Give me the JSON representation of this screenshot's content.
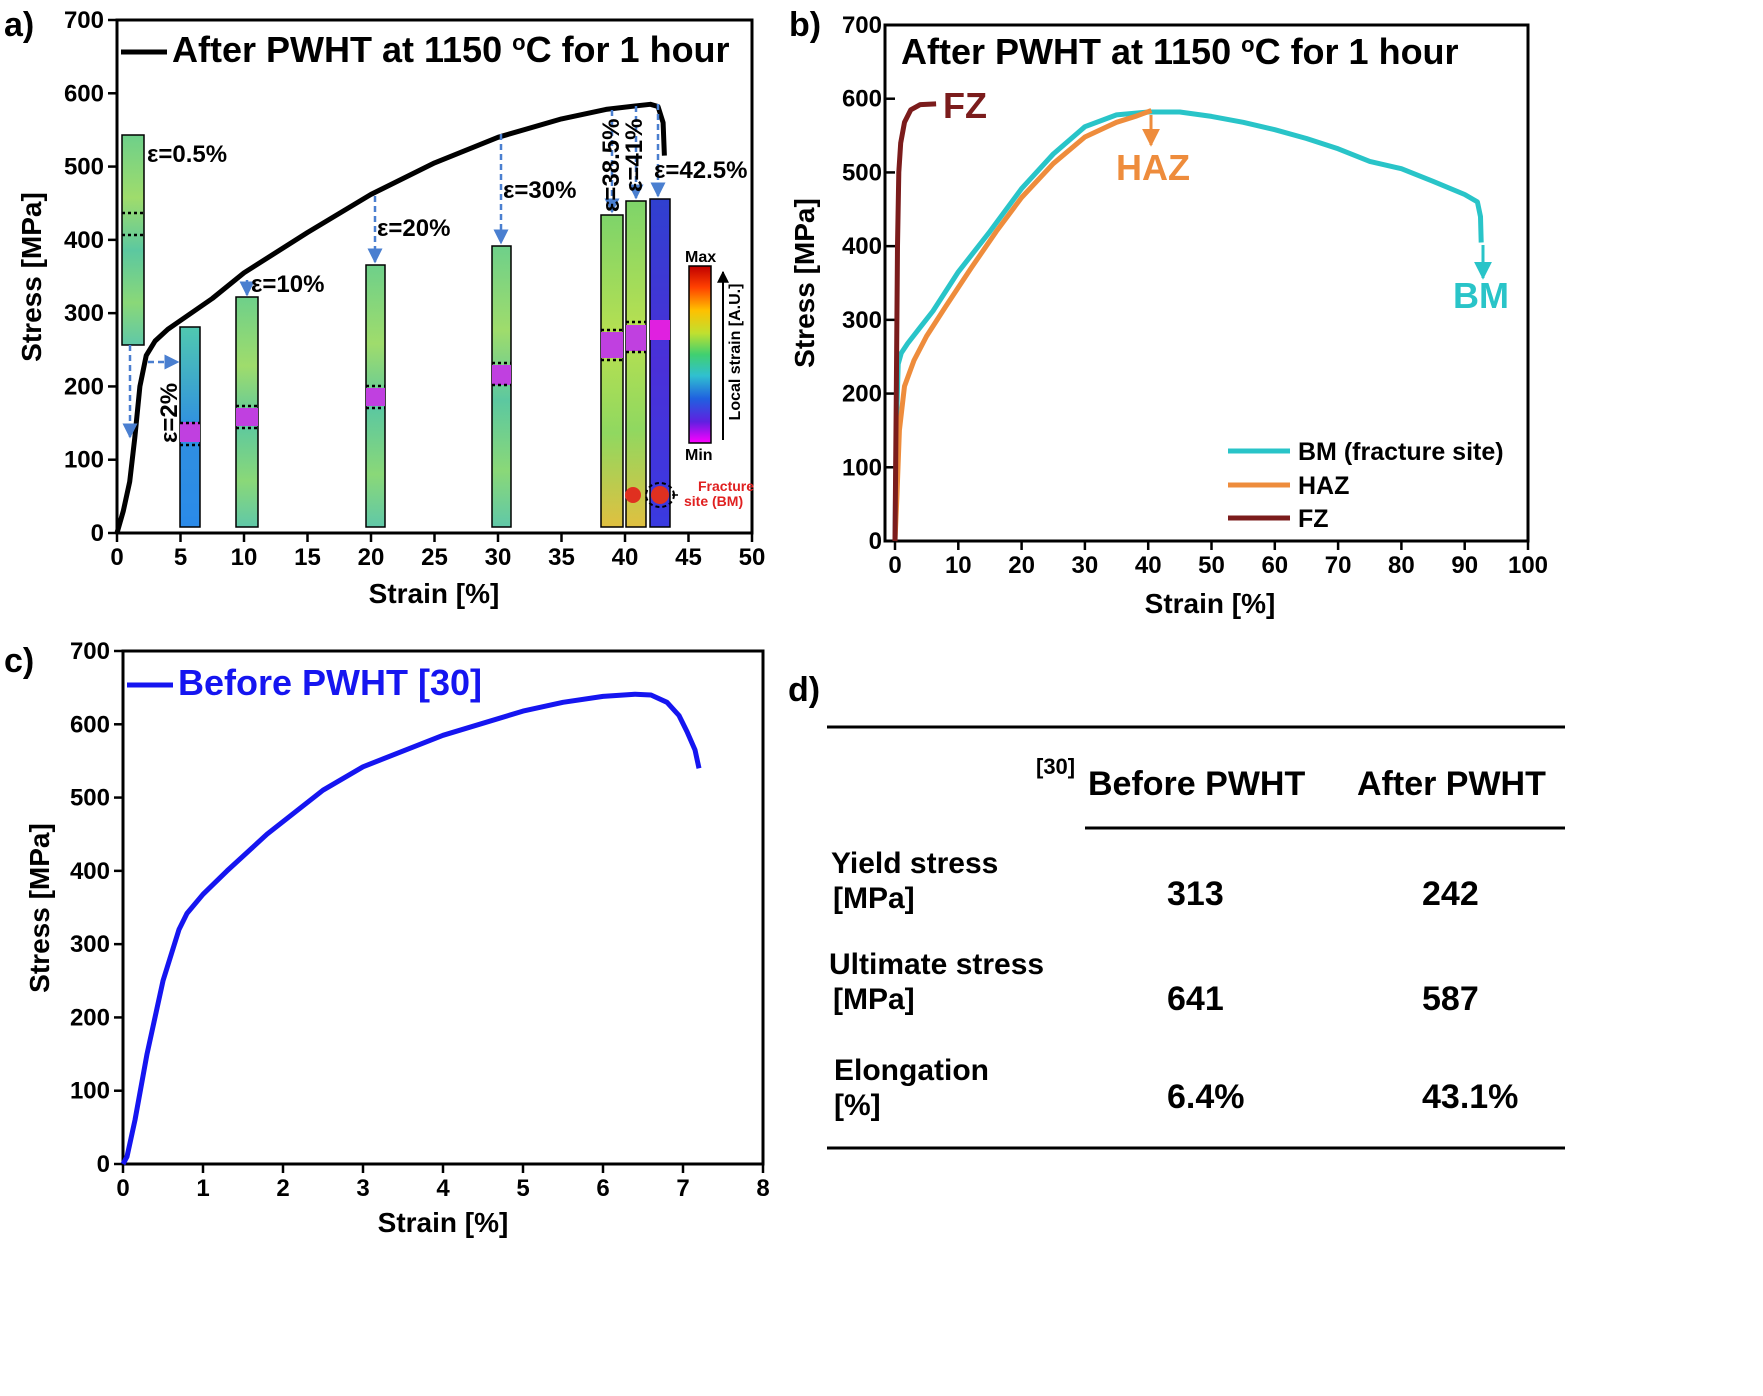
{
  "chart_data": [
    {
      "panel": "a)",
      "type": "line",
      "legend": "After PWHT at 1150 oC for 1 hour",
      "xlabel": "Strain [%]",
      "ylabel": "Stress [MPa]",
      "xlim": [
        0,
        50
      ],
      "ylim": [
        0,
        700
      ],
      "xticks": [
        "0",
        "5",
        "10",
        "15",
        "20",
        "25",
        "30",
        "35",
        "40",
        "45",
        "50"
      ],
      "yticks": [
        "0",
        "100",
        "200",
        "300",
        "400",
        "500",
        "600",
        "700"
      ],
      "color": "#000000",
      "series": [
        {
          "x": [
            0,
            0.5,
            1.0,
            1.4,
            1.8,
            2.3,
            3,
            4,
            5,
            7.5,
            10,
            15,
            20,
            25,
            30,
            35,
            38.5,
            41,
            42,
            42.6,
            43.0,
            43.1
          ],
          "y": [
            0,
            30,
            70,
            130,
            200,
            242,
            262,
            278,
            290,
            320,
            355,
            410,
            462,
            505,
            540,
            565,
            578,
            583,
            585,
            582,
            560,
            515
          ]
        }
      ],
      "annotations": [
        "ε=0.5%",
        "ε=2%",
        "ε=10%",
        "ε=20%",
        "ε=30%",
        "ε=38.5%",
        "ε=41%",
        "ε=42.5%",
        "Fracture site (BM)"
      ],
      "colorbar": {
        "max_label": "Max",
        "min_label": "Min",
        "title": "Local strain [A.U.]"
      }
    },
    {
      "panel": "b)",
      "type": "line",
      "title": "After PWHT at 1150 oC for 1 hour",
      "xlabel": "Strain [%]",
      "ylabel": "Stress [MPa]",
      "xlim": [
        0,
        100
      ],
      "ylim": [
        0,
        700
      ],
      "xticks": [
        "0",
        "10",
        "20",
        "30",
        "40",
        "50",
        "60",
        "70",
        "80",
        "90",
        "100"
      ],
      "yticks": [
        "0",
        "100",
        "200",
        "300",
        "400",
        "500",
        "600",
        "700"
      ],
      "legend_position": "bottom-right",
      "series": [
        {
          "name": "BM (fracture site)",
          "color": "#29c4c8",
          "x": [
            0,
            0.2,
            0.5,
            1,
            2,
            4,
            6,
            10,
            15,
            20,
            25,
            30,
            35,
            40,
            45,
            50,
            55,
            60,
            65,
            70,
            75,
            80,
            85,
            90,
            92,
            92.5,
            92.6
          ],
          "y": [
            0,
            150,
            240,
            255,
            268,
            290,
            312,
            365,
            420,
            478,
            525,
            562,
            578,
            582,
            582,
            576,
            568,
            558,
            546,
            532,
            515,
            505,
            488,
            470,
            460,
            440,
            405
          ]
        },
        {
          "name": "HAZ",
          "color": "#ee8c3c",
          "x": [
            0,
            0.3,
            0.7,
            1.5,
            3,
            5,
            8,
            12,
            16,
            20,
            25,
            30,
            35,
            38,
            40.5
          ],
          "y": [
            0,
            60,
            150,
            210,
            245,
            278,
            318,
            370,
            420,
            466,
            512,
            548,
            568,
            576,
            584
          ]
        },
        {
          "name": "FZ",
          "color": "#7b1c1c",
          "x": [
            0,
            0.2,
            0.4,
            0.6,
            0.9,
            1.5,
            2.5,
            4,
            6.5
          ],
          "y": [
            0,
            200,
            400,
            500,
            540,
            568,
            585,
            592,
            593
          ]
        }
      ],
      "annotations": [
        "FZ",
        "HAZ",
        "BM"
      ]
    },
    {
      "panel": "c)",
      "type": "line",
      "legend": "Before PWHT [30]",
      "xlabel": "Strain [%]",
      "ylabel": "Stress [MPa]",
      "xlim": [
        0,
        8
      ],
      "ylim": [
        0,
        700
      ],
      "xticks": [
        "0",
        "1",
        "2",
        "3",
        "4",
        "5",
        "6",
        "7",
        "8"
      ],
      "yticks": [
        "0",
        "100",
        "200",
        "300",
        "400",
        "500",
        "600",
        "700"
      ],
      "color": "#1515f0",
      "series": [
        {
          "x": [
            0,
            0.05,
            0.15,
            0.3,
            0.5,
            0.7,
            0.8,
            1.0,
            1.3,
            1.8,
            2.5,
            3.0,
            4.0,
            5.0,
            5.5,
            6.0,
            6.4,
            6.6,
            6.8,
            6.95,
            7.05,
            7.15,
            7.2
          ],
          "y": [
            0,
            10,
            60,
            150,
            250,
            320,
            342,
            368,
            400,
            450,
            510,
            542,
            585,
            618,
            630,
            638,
            641,
            640,
            630,
            612,
            590,
            565,
            540
          ]
        }
      ]
    },
    {
      "panel": "d)",
      "type": "table",
      "ref": "[30]",
      "columns": [
        "",
        "Before PWHT",
        "After PWHT"
      ],
      "rows": [
        {
          "label1": "Yield stress",
          "label2": "[MPa]",
          "before": "313",
          "after": "242"
        },
        {
          "label1": "Ultimate stress",
          "label2": "[MPa]",
          "before": "641",
          "after": "587"
        },
        {
          "label1": "Elongation",
          "label2": "[%]",
          "before": "6.4%",
          "after": "43.1%"
        }
      ]
    }
  ]
}
